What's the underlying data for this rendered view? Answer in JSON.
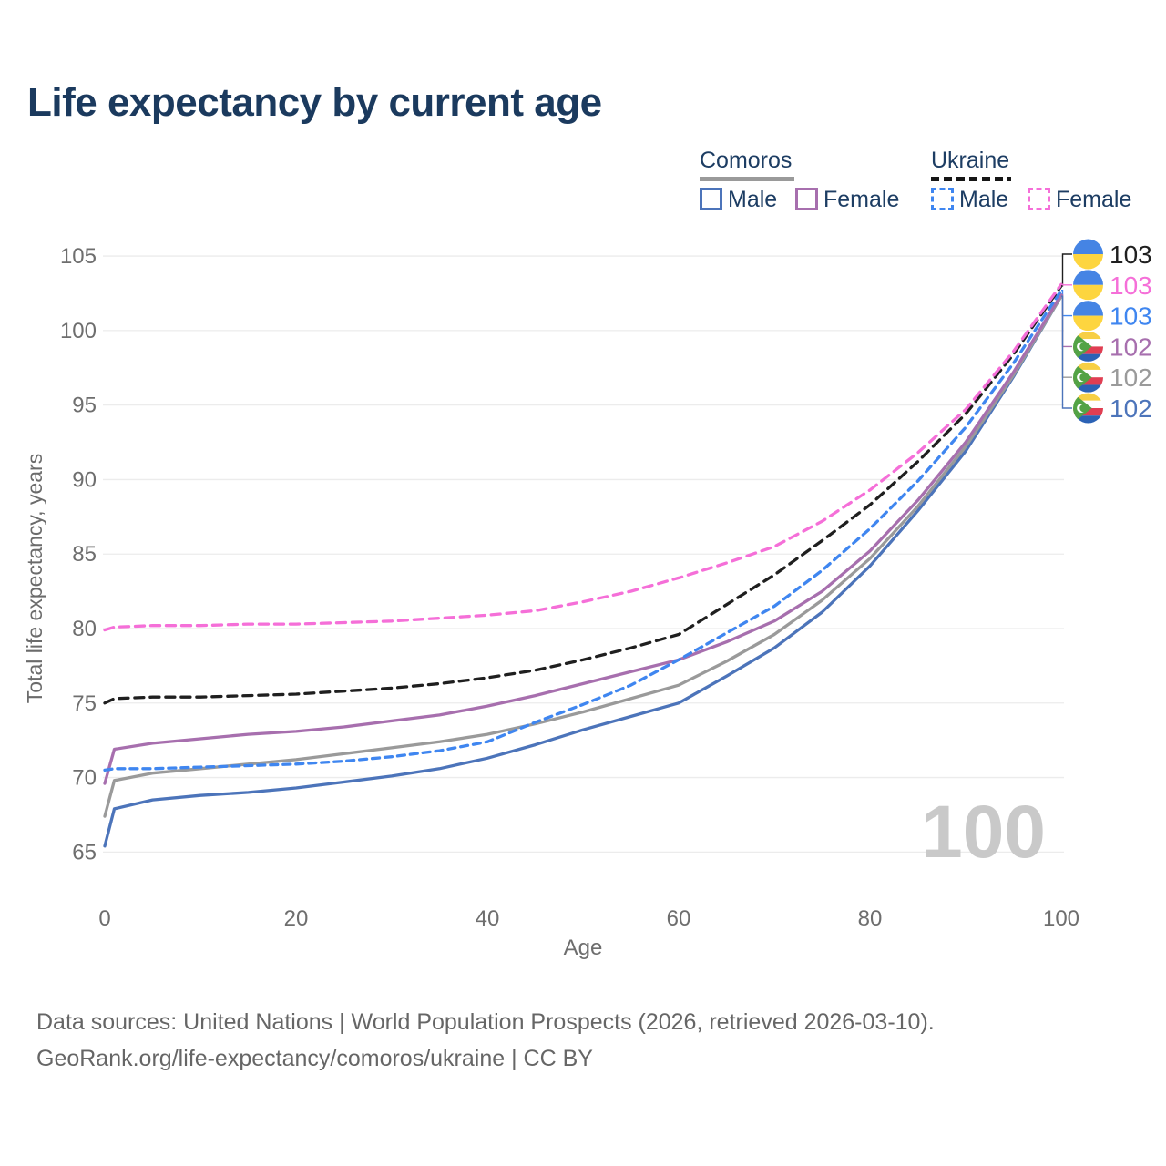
{
  "header": {
    "title": "Life expectancy by current age"
  },
  "legend": {
    "comoros": {
      "title": "Comoros",
      "male": "Male",
      "female": "Female",
      "line_color": "#9a9a9a",
      "male_color": "#4c74ba",
      "female_color": "#a76fae",
      "line_style": "solid"
    },
    "ukraine": {
      "title": "Ukraine",
      "male": "Male",
      "female": "Female",
      "line_color": "#1f1f1f",
      "male_color": "#3f86f0",
      "female_color": "#f56fd8",
      "line_style": "dashed"
    }
  },
  "chart_data": {
    "type": "line",
    "title": "Life expectancy by current age",
    "xlabel": "Age",
    "ylabel": "Total life expectancy, years",
    "watermark": "100",
    "xlim": [
      0,
      100
    ],
    "ylim": [
      65,
      105
    ],
    "xticks": [
      0,
      20,
      40,
      60,
      80,
      100
    ],
    "yticks": [
      105,
      100,
      95,
      90,
      85,
      80,
      75,
      70,
      65
    ],
    "grid": "horizontal-only",
    "legend_position": "top-right",
    "x": [
      0,
      1,
      5,
      10,
      15,
      20,
      25,
      30,
      35,
      40,
      45,
      50,
      55,
      60,
      65,
      70,
      75,
      80,
      85,
      90,
      95,
      100
    ],
    "series": [
      {
        "key": "comoros_male",
        "name": "Comoros Male",
        "country": "Comoros",
        "sex": "Male",
        "style": "solid",
        "color": "#4c74ba",
        "values": [
          65.4,
          67.9,
          68.5,
          68.8,
          69.0,
          69.3,
          69.7,
          70.1,
          70.6,
          71.3,
          72.2,
          73.2,
          74.1,
          75.0,
          76.8,
          78.7,
          81.1,
          84.2,
          87.9,
          91.9,
          96.9,
          102.3
        ]
      },
      {
        "key": "comoros_all",
        "name": "Comoros",
        "country": "Comoros",
        "sex": "Both",
        "style": "solid",
        "color": "#9a9a9a",
        "values": [
          67.4,
          69.8,
          70.3,
          70.6,
          70.9,
          71.2,
          71.6,
          72.0,
          72.4,
          72.9,
          73.6,
          74.4,
          75.3,
          76.2,
          77.8,
          79.6,
          81.9,
          84.7,
          88.2,
          92.2,
          97.0,
          102.3
        ]
      },
      {
        "key": "comoros_female",
        "name": "Comoros Female",
        "country": "Comoros",
        "sex": "Female",
        "style": "solid",
        "color": "#a76fae",
        "values": [
          69.6,
          71.9,
          72.3,
          72.6,
          72.9,
          73.1,
          73.4,
          73.8,
          74.2,
          74.8,
          75.5,
          76.3,
          77.1,
          77.9,
          79.1,
          80.5,
          82.5,
          85.2,
          88.6,
          92.5,
          97.2,
          102.4
        ]
      },
      {
        "key": "ukraine_male",
        "name": "Ukraine Male",
        "country": "Ukraine",
        "sex": "Male",
        "style": "dashed",
        "color": "#3f86f0",
        "values": [
          70.5,
          70.6,
          70.6,
          70.7,
          70.8,
          70.9,
          71.1,
          71.4,
          71.8,
          72.4,
          73.7,
          74.9,
          76.2,
          77.9,
          79.7,
          81.5,
          83.9,
          86.7,
          89.9,
          93.5,
          97.8,
          102.7
        ]
      },
      {
        "key": "ukraine_all",
        "name": "Ukraine",
        "country": "Ukraine",
        "sex": "Both",
        "style": "dashed",
        "color": "#1f1f1f",
        "values": [
          75.0,
          75.3,
          75.4,
          75.4,
          75.5,
          75.6,
          75.8,
          76.0,
          76.3,
          76.7,
          77.2,
          77.9,
          78.7,
          79.6,
          81.6,
          83.6,
          85.9,
          88.3,
          91.2,
          94.4,
          98.4,
          103.0
        ]
      },
      {
        "key": "ukraine_female",
        "name": "Ukraine Female",
        "country": "Ukraine",
        "sex": "Female",
        "style": "dashed",
        "color": "#f56fd8",
        "values": [
          79.9,
          80.1,
          80.2,
          80.2,
          80.3,
          80.3,
          80.4,
          80.5,
          80.7,
          80.9,
          81.2,
          81.8,
          82.5,
          83.4,
          84.4,
          85.5,
          87.2,
          89.3,
          91.8,
          94.7,
          98.6,
          103.1
        ]
      }
    ],
    "end_labels": [
      {
        "flag": "ukraine",
        "label": "103",
        "color": "#1f1f1f",
        "series": "ukraine_all"
      },
      {
        "flag": "ukraine",
        "label": "103",
        "color": "#f56fd8",
        "series": "ukraine_female"
      },
      {
        "flag": "ukraine",
        "label": "103",
        "color": "#3f86f0",
        "series": "ukraine_male"
      },
      {
        "flag": "comoros",
        "label": "102",
        "color": "#a76fae",
        "series": "comoros_female"
      },
      {
        "flag": "comoros",
        "label": "102",
        "color": "#9a9a9a",
        "series": "comoros_all"
      },
      {
        "flag": "comoros",
        "label": "102",
        "color": "#4c74ba",
        "series": "comoros_male"
      }
    ],
    "flag_colors": {
      "ukraine": {
        "top": "#4584e4",
        "bottom": "#fdd53f"
      },
      "comoros": {
        "yellow": "#f7cf45",
        "white": "#ffffff",
        "red": "#e03e52",
        "blue": "#2b62b5",
        "green": "#53a346"
      }
    }
  },
  "footer": {
    "line1": "Data sources: United Nations | World Population Prospects (2026, retrieved 2026-03-10).",
    "line2": "GeoRank.org/life-expectancy/comoros/ukraine | CC BY"
  }
}
